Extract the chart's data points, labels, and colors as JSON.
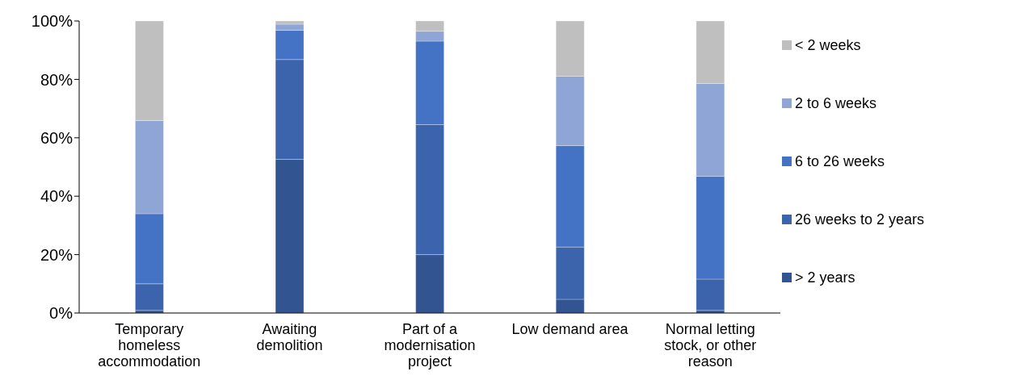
{
  "chart_data": {
    "type": "bar",
    "stacked": true,
    "categories": [
      "Temporary homeless accommodation",
      "Awaiting demolition",
      "Part of a modernisation project",
      "Low demand area",
      "Normal letting stock, or other reason"
    ],
    "series": [
      {
        "name": "> 2 years",
        "color": "#325591",
        "values": [
          0.9,
          52.6,
          20.0,
          4.7,
          0.9
        ]
      },
      {
        "name": "26 weeks to 2 years",
        "color": "#3b64ad",
        "values": [
          9.1,
          34.2,
          44.5,
          17.9,
          10.7
        ]
      },
      {
        "name": "6 to 26 weeks",
        "color": "#4472c4",
        "values": [
          24.0,
          10.0,
          28.6,
          34.7,
          35.2
        ]
      },
      {
        "name": "2 to 6 weeks",
        "color": "#8fa5d5",
        "values": [
          31.9,
          2.1,
          3.4,
          23.8,
          31.8
        ]
      },
      {
        "name": "< 2 weeks",
        "color": "#bfbfbf",
        "values": [
          34.1,
          1.1,
          3.5,
          18.9,
          21.4
        ]
      }
    ],
    "ylim": [
      0,
      100
    ],
    "yticks": [
      {
        "value": 0,
        "label": "0%"
      },
      {
        "value": 20,
        "label": "20%"
      },
      {
        "value": 40,
        "label": "40%"
      },
      {
        "value": 60,
        "label": "60%"
      },
      {
        "value": 80,
        "label": "80%"
      },
      {
        "value": 100,
        "label": "100%"
      }
    ],
    "grid": false,
    "legend": "right"
  }
}
